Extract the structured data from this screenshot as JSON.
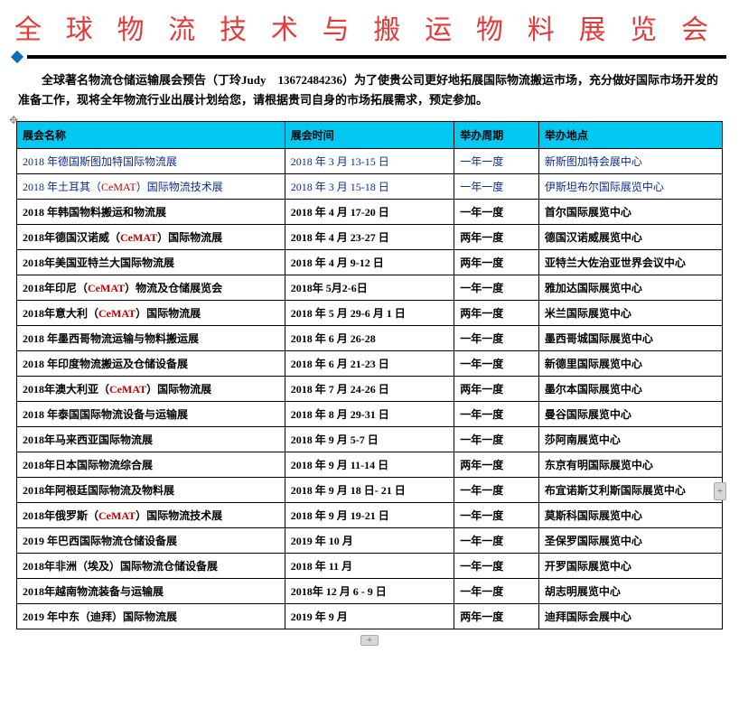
{
  "title": "全球物流技术与搬运物料展览会",
  "intro": "全球著名物流仓储运输展会预告（丁玲Judy　13672484236）为了使贵公司更好地拓展国际物流搬运市场，充分做好国际市场开发的准备工作，现将全年物流行业出展计划给您，请根据贵司自身的市场拓展需求，预定参加。",
  "colors": {
    "title": "#e33a3a",
    "header_bg": "#00c8f0",
    "link_text": "#0b2e8a",
    "cemat": "#c00000",
    "rule_dot": "#0b6fb8"
  },
  "headers": {
    "name": "展会名称",
    "time": "展会时间",
    "freq": "举办周期",
    "loc": "举办地点"
  },
  "rows": [
    {
      "style": "link",
      "name": "2018 年德国斯图加特国际物流展",
      "time": "2018 年 3 月 13-15 日",
      "freq": "一年一度",
      "loc": "新斯图加特会展中心"
    },
    {
      "style": "link",
      "name_pre": "2018 年土耳其（",
      "cemat": "CeMAT",
      "name_post": "）国际物流技术展",
      "time": "2018 年 3 月 15-18 日",
      "freq": "一年一度",
      "loc": "伊斯坦布尔国际展览中心"
    },
    {
      "style": "bold",
      "name": "2018 年韩国物料搬运和物流展",
      "time": "2018 年 4 月 17-20 日",
      "freq": "一年一度",
      "loc": "首尔国际展览中心"
    },
    {
      "style": "bold",
      "name_pre": "2018年德国汉诺威（",
      "cemat": "CeMAT",
      "name_post": "）国际物流展",
      "time": "2018 年 4 月 23-27 日",
      "freq": "两年一度",
      "loc": "德国汉诺威展览中心"
    },
    {
      "style": "bold",
      "name": "2018年美国亚特兰大国际物流展",
      "time": "2018 年 4 月 9-12 日",
      "freq": "两年一度",
      "loc": "亚特兰大佐治亚世界会议中心"
    },
    {
      "style": "bold",
      "name_pre": "2018年印尼（",
      "cemat": "CeMAT",
      "name_post": "）物流及仓储展览会",
      "time": "2018年 5月2-6日",
      "freq": "一年一度",
      "loc": "雅加达国际展览中心"
    },
    {
      "style": "bold",
      "name_pre": "2018年意大利（",
      "cemat": "CeMAT",
      "name_post": "）国际物流展",
      "time": "2018 年 5 月 29-6 月 1 日",
      "freq": "两年一度",
      "loc": "米兰国际展览中心"
    },
    {
      "style": "bold",
      "name": "2018 年墨西哥物流运输与物料搬运展",
      "time": "2018 年 6 月 26-28",
      "freq": "一年一度",
      "loc": "墨西哥城国际展览中心"
    },
    {
      "style": "bold",
      "name": "2018 年印度物流搬运及仓储设备展",
      "time": "2018 年 6 月 21-23 日",
      "freq": "一年一度",
      "loc": "新德里国际展览中心"
    },
    {
      "style": "bold",
      "name_pre": "2018年澳大利亚（",
      "cemat": "CeMAT",
      "name_post": "）国际物流展",
      "time": "2018 年 7 月 24-26 日",
      "freq": "两年一度",
      "loc": "墨尔本国际展览中心"
    },
    {
      "style": "bold",
      "name": "2018 年泰国国际物流设备与运输展",
      "time": "2018 年 8 月 29-31 日",
      "freq": "一年一度",
      "loc": "曼谷国际展览中心"
    },
    {
      "style": "bold",
      "name": "2018年马来西亚国际物流展",
      "time": "2018 年 9 月 5-7 日",
      "freq": "一年一度",
      "loc": "莎阿南展览中心"
    },
    {
      "style": "bold",
      "name": "2018年日本国际物流综合展",
      "time": "2018 年 9 月 11-14 日",
      "freq": "两年一度",
      "loc": "东京有明国际展览中心"
    },
    {
      "style": "bold",
      "name": "2018年阿根廷国际物流及物料展",
      "time": "2018 年 9 月 18 日- 21 日",
      "freq": "一年一度",
      "loc": "布宜诺斯艾利斯国际展览中心"
    },
    {
      "style": "bold",
      "name_pre": "2018年俄罗斯（",
      "cemat": "CeMAT",
      "name_post": "）国际物流技术展",
      "time": "2018 年 9 月 19-21 日",
      "freq": "一年一度",
      "loc": "莫斯科国际展览中心"
    },
    {
      "style": "bold",
      "name": "2019 年巴西国际物流仓储设备展",
      "time": "2019 年 10 月",
      "freq": "一年一度",
      "loc": "圣保罗国际展览中心"
    },
    {
      "style": "bold",
      "name": "2018年非洲（埃及）国际物流仓储设备展",
      "time": "2018 年 11 月",
      "freq": "一年一度",
      "loc": "开罗国际展览中心"
    },
    {
      "style": "bold",
      "name": "2018年越南物流装备与运输展",
      "time": "2018年 12 月 6 - 9 日",
      "freq": "一年一度",
      "loc": "胡志明展览中心"
    },
    {
      "style": "bold",
      "name": "2019 年中东（迪拜）国际物流展",
      "time": "2019 年 9 月",
      "freq": "两年一度",
      "loc": "迪拜国际会展中心"
    }
  ]
}
